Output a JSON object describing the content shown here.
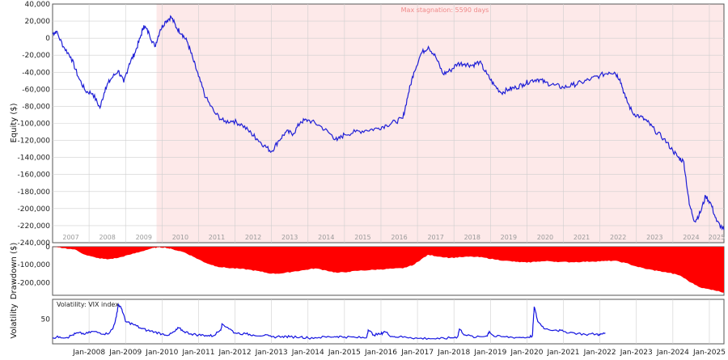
{
  "colors": {
    "equity_line": "#1f1fd6",
    "drawdown_fill": "#ff0000",
    "stagnation_fill": "#fde9e9",
    "vix_line": "#1414e0",
    "grid": "#cfcfcf",
    "frame": "#555555"
  },
  "chart_data": [
    {
      "type": "line",
      "ylabel": "Equity ($)",
      "ylim": [
        -240000,
        40000
      ],
      "yticks": [
        "40,000",
        "20,000",
        "0",
        "-20,000",
        "-40,000",
        "-60,000",
        "-80,000",
        "-100,000",
        "-120,000",
        "-140,000",
        "-160,000",
        "-180,000",
        "-200,000",
        "-220,000",
        "-240,000"
      ],
      "ytick_values": [
        40000,
        20000,
        0,
        -20000,
        -40000,
        -60000,
        -80000,
        -100000,
        -120000,
        -140000,
        -160000,
        -180000,
        -200000,
        -220000,
        -240000
      ],
      "xlim": [
        2007.0,
        2025.4
      ],
      "year_labels": [
        "2007",
        "2008",
        "2009",
        "2010",
        "2011",
        "2012",
        "2013",
        "2014",
        "2015",
        "2016",
        "2017",
        "2018",
        "2019",
        "2020",
        "2021",
        "2022",
        "2023",
        "2024",
        "2025"
      ],
      "stagnation_label": "Max stagnation: 5590 days",
      "stagnation_range": [
        2009.85,
        2025.4
      ],
      "grid": true,
      "series": [
        {
          "x": [
            2007.0,
            2007.1,
            2007.3,
            2007.5,
            2007.7,
            2007.9,
            2008.1,
            2008.3,
            2008.45,
            2008.6,
            2008.8,
            2008.95,
            2009.1,
            2009.25,
            2009.4,
            2009.5,
            2009.65,
            2009.8,
            2009.95,
            2010.1,
            2010.25,
            2010.4,
            2010.55,
            2010.7,
            2010.85,
            2011.0,
            2011.2,
            2011.45,
            2011.7,
            2011.95,
            2012.2,
            2012.45,
            2012.6,
            2012.8,
            2013.0,
            2013.2,
            2013.4,
            2013.6,
            2013.8,
            2014.0,
            2014.3,
            2014.6,
            2014.8,
            2015.0,
            2015.3,
            2015.6,
            2015.9,
            2016.15,
            2016.4,
            2016.6,
            2016.75,
            2016.9,
            2017.1,
            2017.3,
            2017.5,
            2017.7,
            2017.9,
            2018.1,
            2018.3,
            2018.5,
            2018.7,
            2018.9,
            2019.1,
            2019.3,
            2019.5,
            2019.7,
            2019.9,
            2020.1,
            2020.3,
            2020.5,
            2020.75,
            2021.0,
            2021.25,
            2021.5,
            2021.75,
            2022.0,
            2022.25,
            2022.4,
            2022.55,
            2022.7,
            2022.9,
            2023.1,
            2023.3,
            2023.5,
            2023.75,
            2024.0,
            2024.15,
            2024.3,
            2024.45,
            2024.6,
            2024.75,
            2024.9,
            2025.05,
            2025.2,
            2025.4
          ],
          "y": [
            5000,
            8000,
            -10000,
            -22000,
            -45000,
            -62000,
            -65000,
            -82000,
            -58000,
            -48000,
            -38000,
            -52000,
            -30000,
            -18000,
            0,
            15000,
            5000,
            -10000,
            10000,
            20000,
            25000,
            12000,
            5000,
            -5000,
            -25000,
            -45000,
            -70000,
            -88000,
            -98000,
            -97000,
            -102000,
            -112000,
            -118000,
            -126000,
            -133000,
            -120000,
            -110000,
            -112000,
            -98000,
            -96000,
            -102000,
            -112000,
            -120000,
            -113000,
            -110000,
            -108000,
            -106000,
            -102000,
            -98000,
            -94000,
            -65000,
            -40000,
            -18000,
            -10000,
            -22000,
            -42000,
            -38000,
            -30000,
            -30000,
            -32000,
            -28000,
            -42000,
            -55000,
            -64000,
            -60000,
            -58000,
            -54000,
            -50000,
            -48000,
            -52000,
            -55000,
            -58000,
            -55000,
            -52000,
            -48000,
            -44000,
            -40000,
            -40000,
            -48000,
            -70000,
            -88000,
            -92000,
            -98000,
            -108000,
            -118000,
            -132000,
            -140000,
            -145000,
            -195000,
            -215000,
            -205000,
            -185000,
            -195000,
            -215000,
            -225000
          ]
        }
      ]
    },
    {
      "type": "area",
      "ylabel": "Drawdown ($)",
      "ylim": [
        -270000,
        0
      ],
      "yticks": [
        "0",
        "-100,000",
        "-200,000"
      ],
      "ytick_values": [
        0,
        -100000,
        -200000
      ],
      "xlim": [
        2007.0,
        2025.4
      ],
      "series": [
        {
          "x": [
            2007.0,
            2007.3,
            2007.6,
            2007.9,
            2008.2,
            2008.5,
            2008.8,
            2009.1,
            2009.4,
            2009.7,
            2009.9,
            2010.1,
            2010.3,
            2010.6,
            2010.9,
            2011.2,
            2011.5,
            2011.8,
            2012.1,
            2012.4,
            2012.7,
            2013.0,
            2013.3,
            2013.6,
            2013.9,
            2014.2,
            2014.5,
            2014.8,
            2015.1,
            2015.4,
            2015.7,
            2016.0,
            2016.3,
            2016.6,
            2016.9,
            2017.1,
            2017.3,
            2017.6,
            2017.9,
            2018.2,
            2018.5,
            2018.8,
            2019.1,
            2019.4,
            2019.7,
            2020.0,
            2020.3,
            2020.6,
            2020.9,
            2021.2,
            2021.5,
            2021.8,
            2022.1,
            2022.4,
            2022.7,
            2023.0,
            2023.3,
            2023.6,
            2023.9,
            2024.2,
            2024.5,
            2024.8,
            2025.1,
            2025.4
          ],
          "y": [
            0,
            -8000,
            -15000,
            -45000,
            -62000,
            -70000,
            -62000,
            -45000,
            -28000,
            -10000,
            -3000,
            -5000,
            -15000,
            -30000,
            -60000,
            -90000,
            -110000,
            -118000,
            -122000,
            -128000,
            -138000,
            -150000,
            -148000,
            -138000,
            -130000,
            -120000,
            -132000,
            -145000,
            -140000,
            -133000,
            -130000,
            -126000,
            -122000,
            -120000,
            -100000,
            -70000,
            -45000,
            -55000,
            -62000,
            -58000,
            -55000,
            -60000,
            -70000,
            -78000,
            -84000,
            -88000,
            -82000,
            -80000,
            -84000,
            -86000,
            -84000,
            -82000,
            -80000,
            -78000,
            -90000,
            -110000,
            -125000,
            -135000,
            -145000,
            -160000,
            -200000,
            -230000,
            -240000,
            -255000
          ]
        }
      ]
    },
    {
      "type": "line",
      "ylabel": "Volatility",
      "legend_label": "Volatility: VIX index",
      "ylim": [
        0,
        90
      ],
      "yticks": [
        "50"
      ],
      "ytick_values": [
        50
      ],
      "xlim": [
        2007.0,
        2025.4
      ],
      "xticks": [
        "Jan-2008",
        "Jan-2009",
        "Jan-2010",
        "Jan-2011",
        "Jan-2012",
        "Jan-2013",
        "Jan-2014",
        "Jan-2015",
        "Jan-2016",
        "Jan-2017",
        "Jan-2018",
        "Jan-2019",
        "Jan-2020",
        "Jan-2021",
        "Jan-2022",
        "Jan-2023",
        "Jan-2024",
        "Jan-2025"
      ],
      "xtick_values": [
        2008,
        2009,
        2010,
        2011,
        2012,
        2013,
        2014,
        2015,
        2016,
        2017,
        2018,
        2019,
        2020,
        2021,
        2022,
        2023,
        2024,
        2025
      ],
      "series": [
        {
          "x": [
            2007.0,
            2007.2,
            2007.4,
            2007.55,
            2007.7,
            2007.9,
            2008.1,
            2008.3,
            2008.5,
            2008.65,
            2008.75,
            2008.8,
            2008.9,
            2009.0,
            2009.2,
            2009.4,
            2009.6,
            2009.8,
            2010.0,
            2010.2,
            2010.35,
            2010.45,
            2010.6,
            2010.8,
            2011.0,
            2011.2,
            2011.4,
            2011.6,
            2011.65,
            2011.8,
            2012.0,
            2012.3,
            2012.5,
            2012.8,
            2013.0,
            2013.3,
            2013.5,
            2013.8,
            2014.0,
            2014.3,
            2014.6,
            2014.8,
            2015.0,
            2015.3,
            2015.6,
            2015.65,
            2015.8,
            2016.0,
            2016.1,
            2016.3,
            2016.5,
            2016.8,
            2017.0,
            2017.3,
            2017.6,
            2017.9,
            2018.1,
            2018.15,
            2018.3,
            2018.6,
            2018.9,
            2018.97,
            2019.1,
            2019.4,
            2019.7,
            2020.0,
            2020.15,
            2020.2,
            2020.3,
            2020.5,
            2020.8,
            2021.0,
            2021.3,
            2021.6,
            2021.9,
            2022.0,
            2022.15
          ],
          "y": [
            12,
            14,
            13,
            18,
            22,
            20,
            25,
            22,
            20,
            30,
            55,
            80,
            70,
            45,
            40,
            32,
            27,
            24,
            20,
            18,
            25,
            32,
            25,
            20,
            18,
            17,
            16,
            28,
            40,
            33,
            22,
            20,
            18,
            17,
            14,
            15,
            14,
            14,
            12,
            13,
            14,
            15,
            14,
            13,
            12,
            28,
            18,
            20,
            25,
            15,
            14,
            13,
            11,
            11,
            10,
            12,
            14,
            30,
            18,
            13,
            16,
            25,
            15,
            14,
            13,
            13,
            16,
            75,
            45,
            30,
            28,
            25,
            22,
            19,
            20,
            18,
            22
          ]
        }
      ]
    }
  ]
}
